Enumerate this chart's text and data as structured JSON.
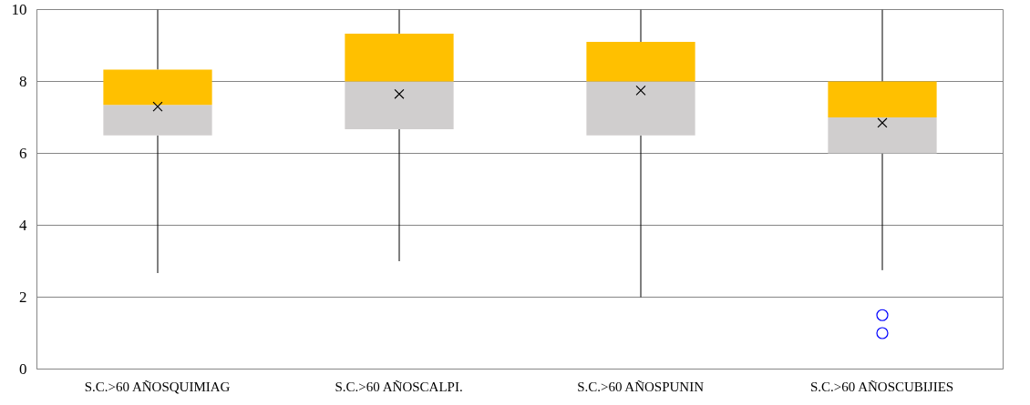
{
  "chart_data": {
    "type": "box",
    "categories": [
      "S.C.>60 AÑOSQUIMIAG",
      "S.C.>60 AÑOSCALPI.",
      "S.C.>60 AÑOSPUNIN",
      "S.C.>60 AÑOSCUBIJIES"
    ],
    "series": [
      {
        "color": "#ffc000",
        "colors": [
          "#d0cece",
          "#d0cece",
          "#d0cece",
          "#d0cece"
        ],
        "boxes": [
          {
            "low": 2.67,
            "q1": 6.5,
            "median": 7.35,
            "q3": 8.33,
            "high": 10,
            "mean": 7.3
          },
          {
            "low": 3,
            "q1": 6.67,
            "median": 8,
            "q3": 9.33,
            "high": 10,
            "mean": 7.65
          },
          {
            "low": 2,
            "q1": 6.5,
            "median": 8,
            "q3": 9.1,
            "high": 10,
            "mean": 7.75
          },
          {
            "low": 2.75,
            "q1": 6,
            "median": 7,
            "q3": 8,
            "high": 10,
            "mean": 6.85,
            "outliers": [
              1.5,
              1
            ]
          }
        ]
      }
    ],
    "ylim": [
      0,
      10
    ],
    "yticks": [
      0,
      2,
      4,
      6,
      8,
      10
    ],
    "grid": "y"
  }
}
